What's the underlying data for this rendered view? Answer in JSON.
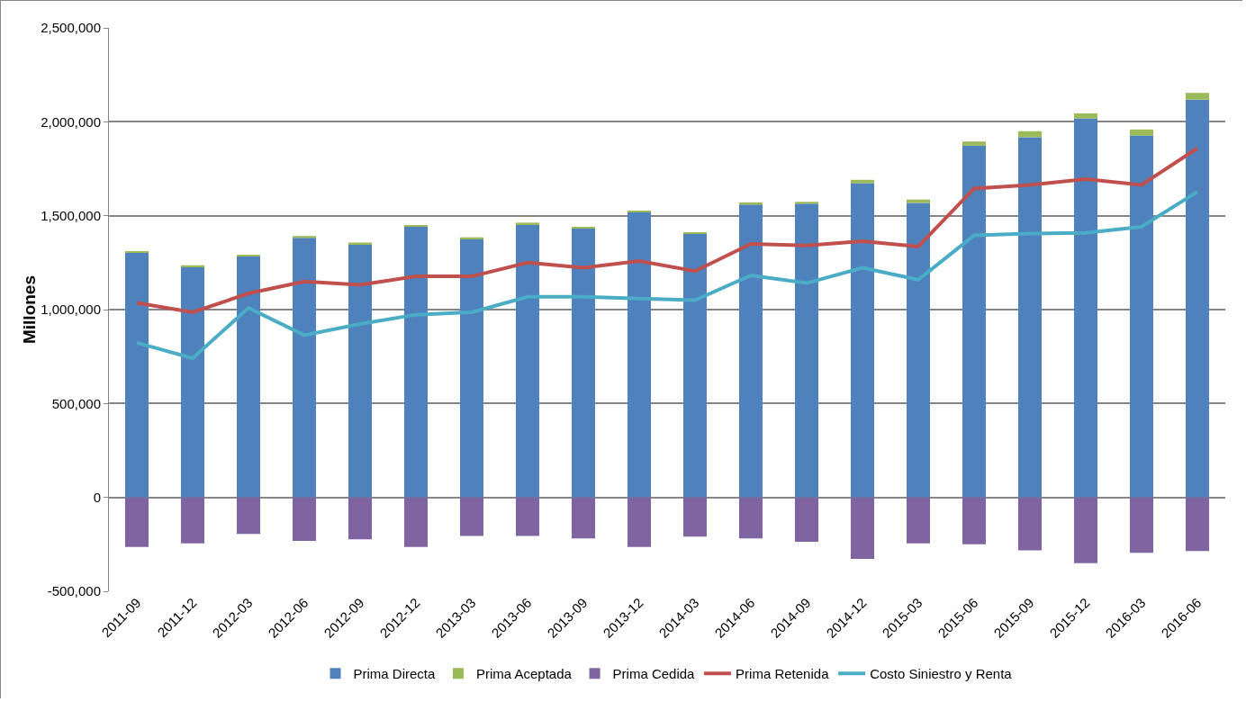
{
  "chart_data": {
    "type": "bar",
    "ylabel": "Millones",
    "stacked": true,
    "grid": "y",
    "legend": "bottom",
    "categories": [
      "2011-09",
      "2011-12",
      "2012-03",
      "2012-06",
      "2012-09",
      "2012-12",
      "2013-03",
      "2013-06",
      "2013-09",
      "2013-12",
      "2014-03",
      "2014-06",
      "2014-09",
      "2014-12",
      "2015-03",
      "2015-06",
      "2015-09",
      "2015-12",
      "2016-03",
      "2016-06"
    ],
    "ylim": [
      -500000,
      2500000
    ],
    "yticks": [
      {
        "value": -500000,
        "label": "-500,000"
      },
      {
        "value": 0,
        "label": "0"
      },
      {
        "value": 500000,
        "label": "500,000"
      },
      {
        "value": 1000000,
        "label": "1,000,000"
      },
      {
        "value": 1500000,
        "label": "1,500,000"
      },
      {
        "value": 2000000,
        "label": "2,000,000"
      },
      {
        "value": 2500000,
        "label": "2,500,000"
      }
    ],
    "series": [
      {
        "name": "Prima Directa",
        "color": "#4f81bd",
        "values": [
          1305000,
          1228000,
          1286000,
          1382000,
          1345000,
          1441000,
          1377000,
          1455000,
          1432000,
          1518000,
          1405000,
          1559000,
          1564000,
          1673000,
          1568000,
          1873000,
          1918000,
          2018000,
          1927000,
          2118000
        ]
      },
      {
        "name": "Prima Aceptada",
        "color": "#9bbb59",
        "values": [
          5000,
          8000,
          5000,
          10000,
          12000,
          5000,
          8000,
          8000,
          6000,
          8000,
          5000,
          12000,
          10000,
          18000,
          18000,
          22000,
          32000,
          27000,
          32000,
          36000
        ]
      },
      {
        "name": "Prima Cedida",
        "color": "#8064a2",
        "values": [
          -264000,
          -245000,
          -195000,
          -232000,
          -223000,
          -264000,
          -205000,
          -205000,
          -218000,
          -264000,
          -209000,
          -218000,
          -236000,
          -327000,
          -245000,
          -250000,
          -282000,
          -350000,
          -295000,
          -286000
        ]
      },
      {
        "name": "Prima Retenida",
        "type": "line",
        "color": "#c0504d",
        "values": [
          1036000,
          986000,
          1086000,
          1150000,
          1132000,
          1177000,
          1177000,
          1250000,
          1223000,
          1259000,
          1205000,
          1350000,
          1341000,
          1364000,
          1336000,
          1645000,
          1664000,
          1695000,
          1664000,
          1859000
        ]
      },
      {
        "name": "Costo Siniestro y Renta",
        "type": "line",
        "color": "#4bacc6",
        "values": [
          823000,
          741000,
          1009000,
          864000,
          923000,
          973000,
          986000,
          1068000,
          1068000,
          1059000,
          1050000,
          1182000,
          1141000,
          1223000,
          1159000,
          1395000,
          1405000,
          1409000,
          1441000,
          1627000
        ]
      }
    ]
  }
}
